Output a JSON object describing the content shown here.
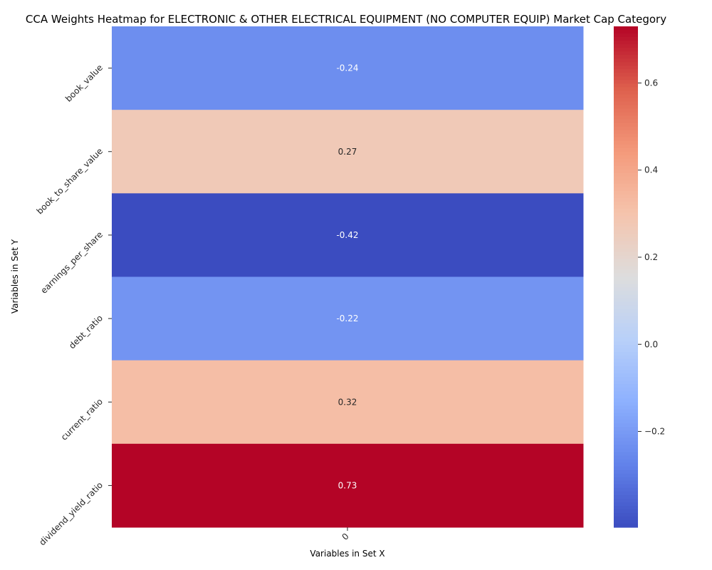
{
  "chart_data": {
    "type": "heatmap",
    "title": "CCA Weights Heatmap for ELECTRONIC & OTHER ELECTRICAL EQUIPMENT (NO COMPUTER EQUIP) Market Cap Category",
    "xlabel": "Variables in Set X",
    "ylabel": "Variables in Set Y",
    "x_categories": [
      "0"
    ],
    "y_categories": [
      "book_value",
      "book_to_share_value",
      "earnings_per_share",
      "debt_ratio",
      "current_ratio",
      "dividend_yield_ratio"
    ],
    "values": [
      [
        -0.24
      ],
      [
        0.27
      ],
      [
        -0.42
      ],
      [
        -0.22
      ],
      [
        0.32
      ],
      [
        0.73
      ]
    ],
    "value_labels": [
      "-0.24",
      "0.27",
      "-0.42",
      "-0.22",
      "0.32",
      "0.73"
    ],
    "colormap": "coolwarm",
    "colorbar": {
      "range": [
        -0.42,
        0.73
      ],
      "ticks": [
        -0.2,
        0.0,
        0.2,
        0.4,
        0.6
      ],
      "tick_labels": [
        "−0.2",
        "0.0",
        "0.2",
        "0.4",
        "0.6"
      ]
    },
    "legend": "right"
  }
}
